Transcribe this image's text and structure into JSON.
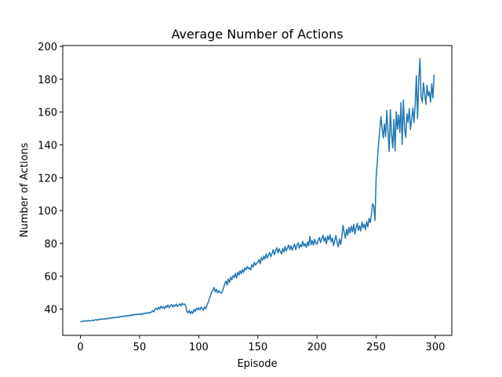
{
  "chart_data": {
    "type": "line",
    "title": "Average Number of Actions",
    "x_label": "Episode",
    "y_label": "Number of Actions",
    "x": [
      0,
      1,
      2,
      3,
      4,
      5,
      6,
      7,
      8,
      9,
      10,
      11,
      12,
      13,
      14,
      15,
      16,
      17,
      18,
      19,
      20,
      21,
      22,
      23,
      24,
      25,
      26,
      27,
      28,
      29,
      30,
      31,
      32,
      33,
      34,
      35,
      36,
      37,
      38,
      39,
      40,
      41,
      42,
      43,
      44,
      45,
      46,
      47,
      48,
      49,
      50,
      51,
      52,
      53,
      54,
      55,
      56,
      57,
      58,
      59,
      60,
      61,
      62,
      63,
      64,
      65,
      66,
      67,
      68,
      69,
      70,
      71,
      72,
      73,
      74,
      75,
      76,
      77,
      78,
      79,
      80,
      81,
      82,
      83,
      84,
      85,
      86,
      87,
      88,
      89,
      90,
      91,
      92,
      93,
      94,
      95,
      96,
      97,
      98,
      99,
      100,
      101,
      102,
      103,
      104,
      105,
      106,
      107,
      108,
      109,
      110,
      111,
      112,
      113,
      114,
      115,
      116,
      117,
      118,
      119,
      120,
      121,
      122,
      123,
      124,
      125,
      126,
      127,
      128,
      129,
      130,
      131,
      132,
      133,
      134,
      135,
      136,
      137,
      138,
      139,
      140,
      141,
      142,
      143,
      144,
      145,
      146,
      147,
      148,
      149,
      150,
      151,
      152,
      153,
      154,
      155,
      156,
      157,
      158,
      159,
      160,
      161,
      162,
      163,
      164,
      165,
      166,
      167,
      168,
      169,
      170,
      171,
      172,
      173,
      174,
      175,
      176,
      177,
      178,
      179,
      180,
      181,
      182,
      183,
      184,
      185,
      186,
      187,
      188,
      189,
      190,
      191,
      192,
      193,
      194,
      195,
      196,
      197,
      198,
      199,
      200,
      201,
      202,
      203,
      204,
      205,
      206,
      207,
      208,
      209,
      210,
      211,
      212,
      213,
      214,
      215,
      216,
      217,
      218,
      219,
      220,
      221,
      222,
      223,
      224,
      225,
      226,
      227,
      228,
      229,
      230,
      231,
      232,
      233,
      234,
      235,
      236,
      237,
      238,
      239,
      240,
      241,
      242,
      243,
      244,
      245,
      246,
      247,
      248,
      249,
      250,
      251,
      252,
      253,
      254,
      255,
      256,
      257,
      258,
      259,
      260,
      261,
      262,
      263,
      264,
      265,
      266,
      267,
      268,
      269,
      270,
      271,
      272,
      273,
      274,
      275,
      276,
      277,
      278,
      279,
      280,
      281,
      282,
      283,
      284,
      285,
      286,
      287,
      288,
      289,
      290,
      291,
      292,
      293,
      294,
      295,
      296,
      297,
      298,
      299
    ],
    "series": [
      {
        "name": "Average Number of Actions",
        "color": "#1f77b4",
        "values": [
          32.2,
          32.5,
          32.4,
          32.8,
          33.0,
          32.6,
          32.9,
          33.1,
          32.7,
          33.0,
          33.3,
          32.9,
          33.4,
          33.6,
          33.2,
          33.8,
          33.5,
          34.0,
          33.7,
          33.9,
          34.2,
          33.8,
          34.4,
          34.1,
          34.6,
          34.3,
          34.8,
          34.5,
          35.0,
          34.7,
          35.1,
          34.9,
          35.4,
          35.0,
          35.6,
          35.3,
          35.8,
          35.5,
          36.0,
          35.7,
          36.1,
          35.8,
          36.4,
          36.0,
          36.7,
          36.3,
          36.9,
          36.5,
          37.1,
          36.7,
          37.0,
          36.6,
          37.3,
          36.9,
          37.6,
          37.2,
          37.9,
          37.4,
          38.1,
          37.6,
          38.3,
          39.0,
          38.2,
          39.8,
          40.5,
          39.6,
          41.2,
          40.1,
          41.8,
          40.6,
          41.5,
          40.2,
          42.0,
          41.1,
          42.6,
          40.8,
          41.9,
          42.8,
          41.3,
          42.5,
          41.8,
          43.0,
          41.6,
          42.4,
          43.2,
          42.0,
          43.6,
          42.7,
          43.1,
          41.9,
          38.5,
          37.8,
          39.2,
          37.2,
          38.6,
          37.5,
          39.8,
          38.4,
          40.6,
          39.5,
          40.8,
          39.6,
          41.2,
          40.0,
          39.4,
          41.5,
          40.2,
          42.3,
          44.1,
          46.5,
          48.2,
          50.6,
          51.3,
          53.2,
          50.5,
          52.0,
          49.8,
          51.2,
          50.3,
          49.6,
          50.8,
          52.9,
          55.4,
          57.1,
          54.6,
          58.3,
          56.2,
          59.5,
          57.8,
          60.4,
          59.2,
          61.8,
          58.9,
          62.5,
          60.7,
          63.4,
          61.5,
          64.2,
          62.3,
          65.1,
          63.8,
          66.0,
          64.5,
          65.3,
          63.9,
          67.1,
          65.6,
          68.4,
          66.8,
          67.9,
          68.5,
          70.2,
          67.6,
          71.4,
          69.8,
          72.3,
          70.5,
          73.6,
          71.2,
          72.8,
          74.5,
          71.9,
          73.8,
          76.2,
          73.1,
          75.5,
          77.4,
          74.3,
          76.8,
          75.1,
          73.6,
          76.9,
          74.8,
          78.1,
          75.4,
          77.3,
          79.0,
          76.2,
          78.5,
          75.8,
          77.9,
          79.6,
          76.3,
          78.8,
          80.4,
          77.1,
          79.3,
          78.0,
          81.2,
          78.4,
          79.8,
          77.6,
          80.9,
          78.5,
          84.3,
          79.2,
          81.7,
          78.9,
          82.5,
          80.1,
          79.5,
          81.8,
          83.6,
          80.4,
          82.9,
          85.0,
          81.3,
          83.7,
          79.8,
          84.6,
          82.1,
          85.3,
          80.9,
          83.4,
          78.6,
          81.9,
          84.8,
          80.3,
          77.9,
          82.6,
          79.4,
          84.1,
          91.0,
          86.5,
          83.2,
          88.7,
          84.9,
          89.8,
          86.3,
          90.5,
          87.1,
          91.6,
          85.8,
          89.4,
          92.3,
          88.0,
          90.7,
          87.6,
          93.1,
          89.5,
          91.8,
          88.3,
          93.4,
          90.1,
          95.2,
          92.6,
          97.8,
          104.1,
          102.5,
          94.0,
          120.5,
          130.2,
          140.8,
          148.5,
          157.3,
          150.6,
          144.2,
          152.8,
          145.1,
          160.9,
          148.3,
          135.9,
          161.4,
          146.7,
          138.2,
          155.6,
          136.4,
          160.2,
          149.5,
          158.3,
          147.6,
          165.8,
          140.3,
          167.4,
          150.2,
          144.6,
          158.9,
          153.7,
          162.1,
          149.3,
          155.8,
          162.4,
          153.6,
          164.9,
          182.1,
          156.2,
          178.6,
          192.5,
          169.4,
          166.0,
          177.8,
          171.2,
          164.7,
          176.3,
          169.8,
          172.4,
          166.1,
          177.2,
          168.5,
          182.9
        ]
      }
    ],
    "xlim": [
      -14.95,
      313.95
    ],
    "ylim": [
      24,
      200.5
    ],
    "xticks": [
      0,
      50,
      100,
      150,
      200,
      250,
      300
    ],
    "yticks": [
      40,
      60,
      80,
      100,
      120,
      140,
      160,
      180,
      200
    ]
  }
}
